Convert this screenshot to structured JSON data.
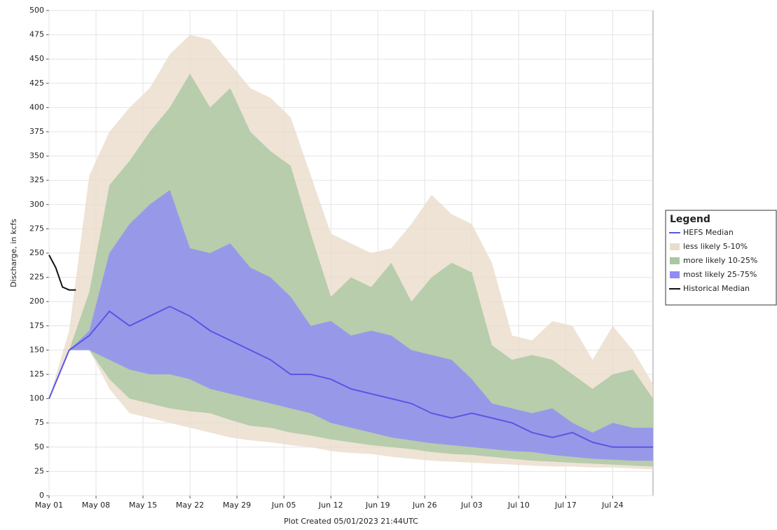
{
  "chart_data": {
    "type": "band",
    "x_label": "Plot Created 05/01/2023 21:44UTC",
    "y_label": "Discharge, in kcfs",
    "legend_title": "Legend",
    "x": [
      0,
      3,
      6,
      9,
      12,
      15,
      18,
      21,
      24,
      27,
      30,
      33,
      36,
      39,
      42,
      45,
      48,
      51,
      54,
      57,
      60,
      63,
      66,
      69,
      72,
      75,
      78,
      81,
      84,
      87,
      90
    ],
    "xlim": [
      0,
      90
    ],
    "xticks": [
      {
        "value": 0,
        "label": "May 01"
      },
      {
        "value": 7,
        "label": "May 08"
      },
      {
        "value": 14,
        "label": "May 15"
      },
      {
        "value": 21,
        "label": "May 22"
      },
      {
        "value": 28,
        "label": "May 29"
      },
      {
        "value": 35,
        "label": "Jun 05"
      },
      {
        "value": 42,
        "label": "Jun 12"
      },
      {
        "value": 49,
        "label": "Jun 19"
      },
      {
        "value": 56,
        "label": "Jun 26"
      },
      {
        "value": 63,
        "label": "Jul 03"
      },
      {
        "value": 70,
        "label": "Jul 10"
      },
      {
        "value": 77,
        "label": "Jul 17"
      },
      {
        "value": 84,
        "label": "Jul 24"
      }
    ],
    "ylim": [
      0,
      500
    ],
    "yticks": [
      0,
      25,
      50,
      75,
      100,
      125,
      150,
      175,
      200,
      225,
      250,
      275,
      300,
      325,
      350,
      375,
      400,
      425,
      450,
      475,
      500
    ],
    "grid": true,
    "series": [
      {
        "name": "HEFS Median",
        "kind": "line",
        "color": "#5a55e6",
        "values": [
          100,
          150,
          165,
          190,
          175,
          185,
          195,
          185,
          170,
          160,
          150,
          140,
          125,
          125,
          120,
          110,
          105,
          100,
          95,
          85,
          80,
          85,
          80,
          75,
          65,
          60,
          65,
          55,
          50,
          50,
          50
        ]
      },
      {
        "name": "less likely 5-10%",
        "kind": "band",
        "color": "#eadccb",
        "upper": [
          100,
          170,
          330,
          375,
          400,
          420,
          455,
          475,
          470,
          445,
          420,
          410,
          390,
          330,
          270,
          260,
          250,
          255,
          280,
          310,
          290,
          280,
          240,
          165,
          160,
          180,
          175,
          140,
          175,
          150,
          115
        ],
        "lower": [
          100,
          150,
          150,
          110,
          85,
          80,
          75,
          70,
          65,
          60,
          57,
          55,
          52,
          50,
          46,
          44,
          43,
          40,
          38,
          36,
          35,
          34,
          33,
          32,
          31,
          30,
          30,
          29,
          29,
          28,
          27
        ]
      },
      {
        "name": "more likely 10-25%",
        "kind": "band",
        "color": "#a9c7a1",
        "upper": [
          100,
          150,
          210,
          320,
          345,
          375,
          400,
          435,
          400,
          420,
          375,
          355,
          340,
          270,
          205,
          225,
          215,
          240,
          200,
          225,
          240,
          230,
          155,
          140,
          145,
          140,
          125,
          110,
          125,
          130,
          100
        ],
        "lower": [
          100,
          150,
          150,
          120,
          100,
          95,
          90,
          87,
          85,
          78,
          72,
          70,
          65,
          62,
          58,
          55,
          52,
          50,
          48,
          45,
          43,
          42,
          40,
          38,
          36,
          35,
          34,
          33,
          32,
          31,
          30
        ]
      },
      {
        "name": "most likely 25-75%",
        "kind": "band",
        "color": "#8f8cf7",
        "upper": [
          100,
          150,
          170,
          250,
          280,
          300,
          315,
          255,
          250,
          260,
          235,
          225,
          205,
          175,
          180,
          165,
          170,
          165,
          150,
          145,
          140,
          120,
          95,
          90,
          85,
          90,
          75,
          65,
          75,
          70,
          70
        ],
        "lower": [
          100,
          150,
          150,
          140,
          130,
          125,
          125,
          120,
          110,
          105,
          100,
          95,
          90,
          85,
          75,
          70,
          65,
          60,
          57,
          54,
          52,
          50,
          48,
          46,
          45,
          42,
          40,
          38,
          37,
          36,
          36
        ]
      },
      {
        "name": "Historical Median",
        "kind": "line",
        "color": "#111111",
        "x": [
          0,
          1,
          2,
          3,
          4
        ],
        "values": [
          248,
          235,
          215,
          212,
          212
        ]
      }
    ]
  }
}
